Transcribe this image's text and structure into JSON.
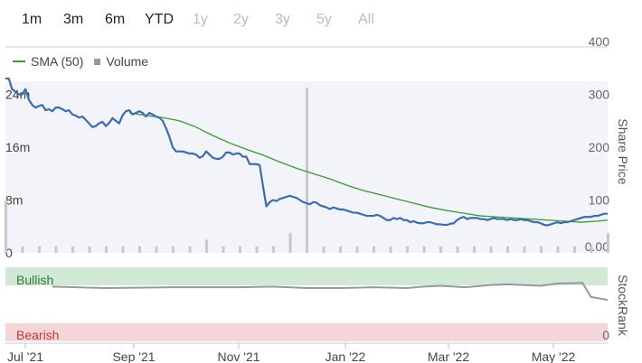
{
  "range_buttons": [
    {
      "label": "1m",
      "enabled": true
    },
    {
      "label": "3m",
      "enabled": true
    },
    {
      "label": "6m",
      "enabled": true
    },
    {
      "label": "YTD",
      "enabled": true
    },
    {
      "label": "1y",
      "enabled": false
    },
    {
      "label": "2y",
      "enabled": false
    },
    {
      "label": "3y",
      "enabled": false
    },
    {
      "label": "5y",
      "enabled": false
    },
    {
      "label": "All",
      "enabled": false
    }
  ],
  "legend": {
    "sma_label": "SMA (50)",
    "volume_label": "Volume"
  },
  "colors": {
    "price": "#3a6cb5",
    "sma": "#3a9a2e",
    "volume": "#c8c8c8",
    "plot_fill": "#f3f4fa",
    "stockrank": "#999999",
    "bullish_band": "#cfe9d6",
    "bearish_band": "#f5d6d8",
    "bearish_text": "#c0392b",
    "enabled_text": "#222222",
    "disabled_text": "#bbbbbb"
  },
  "chart_data": [
    {
      "type": "line",
      "x_ticks": [
        "Jul '21",
        "Sep '21",
        "Nov '21",
        "Jan '22",
        "Mar '22",
        "May '22"
      ],
      "right_axis": {
        "label": "Share Price",
        "ticks": [
          "400",
          "300",
          "200",
          "100",
          "0.00"
        ],
        "ylim": [
          0,
          400
        ]
      },
      "left_axis": {
        "label": "Volume",
        "ticks": [
          "24m",
          "16m",
          "8m",
          "0"
        ],
        "ylim": [
          0,
          32
        ]
      },
      "series": [
        {
          "name": "Price",
          "x": [
            0,
            2,
            4,
            6,
            8,
            10,
            12,
            14,
            16,
            18,
            20,
            22,
            24,
            26,
            28,
            30,
            32,
            34,
            36,
            38,
            40,
            42,
            44,
            46,
            48,
            50,
            52,
            54,
            56,
            58,
            60,
            62,
            64,
            66,
            68,
            70,
            72,
            74,
            76,
            78,
            80,
            82,
            84,
            86,
            88,
            90,
            92,
            94,
            96,
            98,
            100,
            102,
            104,
            106,
            108,
            110,
            112,
            114,
            116,
            118,
            120,
            122,
            124,
            126,
            128,
            130,
            132,
            134,
            136,
            138,
            140,
            142,
            144,
            146,
            148,
            150,
            152,
            154,
            156,
            158,
            160,
            162,
            164,
            166,
            168,
            170,
            172,
            174,
            176,
            178,
            180,
            182,
            184,
            186,
            188,
            190,
            192,
            194,
            196,
            198,
            200,
            202,
            204,
            206,
            208,
            210,
            212,
            214,
            216,
            218,
            220,
            222,
            224,
            226,
            228,
            230,
            232,
            234,
            236,
            238,
            240,
            242,
            244,
            246,
            248,
            250,
            252,
            254,
            256,
            258,
            260,
            262,
            264,
            266,
            268,
            270,
            272,
            274,
            276,
            278,
            280,
            282,
            284,
            286,
            288,
            290,
            292,
            294,
            296,
            298,
            300,
            302,
            304,
            306,
            308,
            310,
            312,
            314,
            316,
            318,
            320,
            322,
            324,
            326,
            328,
            330,
            332,
            334,
            336,
            338,
            340,
            342,
            344,
            346,
            348,
            350,
            352,
            354,
            356,
            358,
            360
          ],
          "values": [
            330,
            330,
            310,
            305,
            300,
            300,
            310,
            290,
            280,
            275,
            278,
            280,
            270,
            272,
            268,
            275,
            275,
            272,
            268,
            270,
            262,
            260,
            256,
            258,
            252,
            245,
            238,
            240,
            245,
            248,
            240,
            246,
            255,
            250,
            245,
            260,
            268,
            270,
            262,
            265,
            268,
            265,
            258,
            265,
            262,
            258,
            256,
            250,
            236,
            220,
            200,
            192,
            192,
            192,
            190,
            188,
            188,
            186,
            180,
            183,
            192,
            186,
            180,
            178,
            178,
            182,
            190,
            190,
            186,
            188,
            188,
            182,
            182,
            168,
            168,
            168,
            166,
            126,
            88,
            96,
            100,
            98,
            102,
            104,
            106,
            108,
            106,
            104,
            100,
            96,
            94,
            92,
            96,
            95,
            90,
            88,
            86,
            83,
            86,
            84,
            82,
            82,
            80,
            78,
            76,
            76,
            74,
            72,
            70,
            70,
            70,
            72,
            70,
            66,
            62,
            62,
            66,
            64,
            66,
            62,
            62,
            58,
            60,
            57,
            56,
            56,
            58,
            58,
            56,
            54,
            54,
            53,
            53,
            55,
            56,
            62,
            66,
            68,
            64,
            66,
            66,
            66,
            64,
            64,
            62,
            64,
            66,
            64,
            64,
            64,
            62,
            64,
            62,
            62,
            64,
            62,
            62,
            60,
            58,
            58,
            56,
            53,
            52,
            54,
            56,
            58,
            56,
            58,
            58,
            60,
            62,
            64,
            66,
            68,
            68,
            68,
            70,
            70,
            72,
            74,
            74
          ]
        },
        {
          "name": "SMA (50)",
          "x": [
            74,
            84,
            94,
            104,
            114,
            124,
            134,
            144,
            154,
            164,
            174,
            184,
            194,
            204,
            214,
            224,
            234,
            244,
            254,
            264,
            274,
            284,
            294,
            304,
            314,
            324,
            334,
            344,
            354,
            360
          ],
          "values": [
            265,
            260,
            256,
            250,
            238,
            222,
            208,
            196,
            185,
            172,
            160,
            150,
            140,
            128,
            118,
            110,
            102,
            94,
            86,
            80,
            75,
            70,
            68,
            66,
            64,
            62,
            60,
            58,
            60,
            62
          ]
        },
        {
          "name": "Volume",
          "x": [
            0,
            10,
            20,
            30,
            40,
            50,
            60,
            70,
            80,
            90,
            100,
            110,
            120,
            130,
            140,
            150,
            160,
            170,
            180,
            190,
            200,
            210,
            220,
            230,
            240,
            250,
            260,
            270,
            280,
            290,
            300,
            310,
            320,
            330,
            340,
            350,
            360
          ],
          "values": [
            8,
            1,
            1,
            1,
            1,
            1,
            1,
            1,
            1,
            1,
            1,
            1,
            2,
            1,
            1,
            1,
            1,
            3,
            25,
            1,
            1,
            1,
            1,
            1,
            1,
            1,
            1,
            1,
            1,
            1,
            1,
            1,
            1,
            1,
            1,
            1,
            3
          ]
        }
      ]
    },
    {
      "type": "line",
      "right_axis": {
        "label": "StockRank",
        "ticks": [
          "0"
        ]
      },
      "bands": {
        "top": "Bullish",
        "bottom": "Bearish"
      },
      "ylim": [
        0,
        100
      ],
      "series": [
        {
          "name": "StockRank",
          "x": [
            28,
            60,
            100,
            120,
            140,
            160,
            180,
            200,
            220,
            240,
            250,
            260,
            275,
            290,
            300,
            310,
            320,
            330,
            345,
            350,
            360
          ],
          "values": [
            74,
            72,
            73,
            73,
            73,
            74,
            72,
            72,
            73,
            72,
            74,
            75,
            73,
            76,
            77,
            76,
            75,
            78,
            79,
            60,
            56
          ]
        }
      ]
    }
  ]
}
